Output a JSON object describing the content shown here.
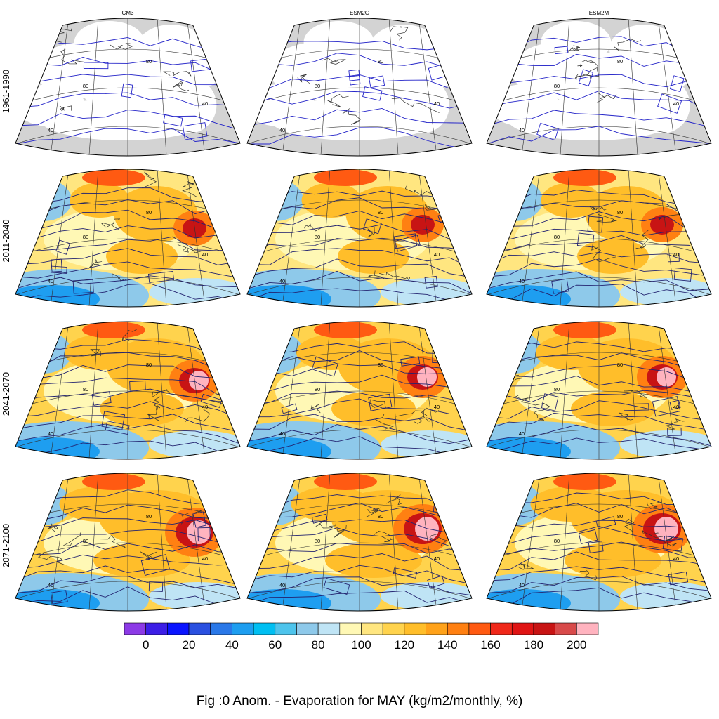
{
  "figure": {
    "models": [
      "CM3",
      "ESM2G",
      "ESM2M"
    ],
    "periods": [
      "1961-1990",
      "2011-2040",
      "2041-2070",
      "2071-2100"
    ],
    "caption": "Fig :0  Anom.  - Evaporation for MAY (kg/m2/monthly, %)"
  },
  "contour_label_values": [
    "40",
    "80"
  ],
  "colorbar": {
    "tick_labels": [
      "0",
      "20",
      "40",
      "60",
      "80",
      "100",
      "120",
      "140",
      "160",
      "180",
      "200"
    ],
    "colors": [
      "#8c3ae6",
      "#3c1ee6",
      "#0a14ff",
      "#2a50e0",
      "#2a78e8",
      "#1e9ef0",
      "#00bff2",
      "#4ec4ec",
      "#8ec9ea",
      "#bfe4f5",
      "#fff8b5",
      "#ffe680",
      "#ffd34d",
      "#ffbe2a",
      "#ffa21a",
      "#ff8012",
      "#ff5a12",
      "#f0281a",
      "#e01414",
      "#c81414",
      "#d84a4a",
      "#ffb3bf"
    ]
  },
  "style": {
    "land_missing": "#d3d3d3",
    "contour": "#2323c8",
    "contour_dark": "#232370",
    "coast": "#303030"
  }
}
